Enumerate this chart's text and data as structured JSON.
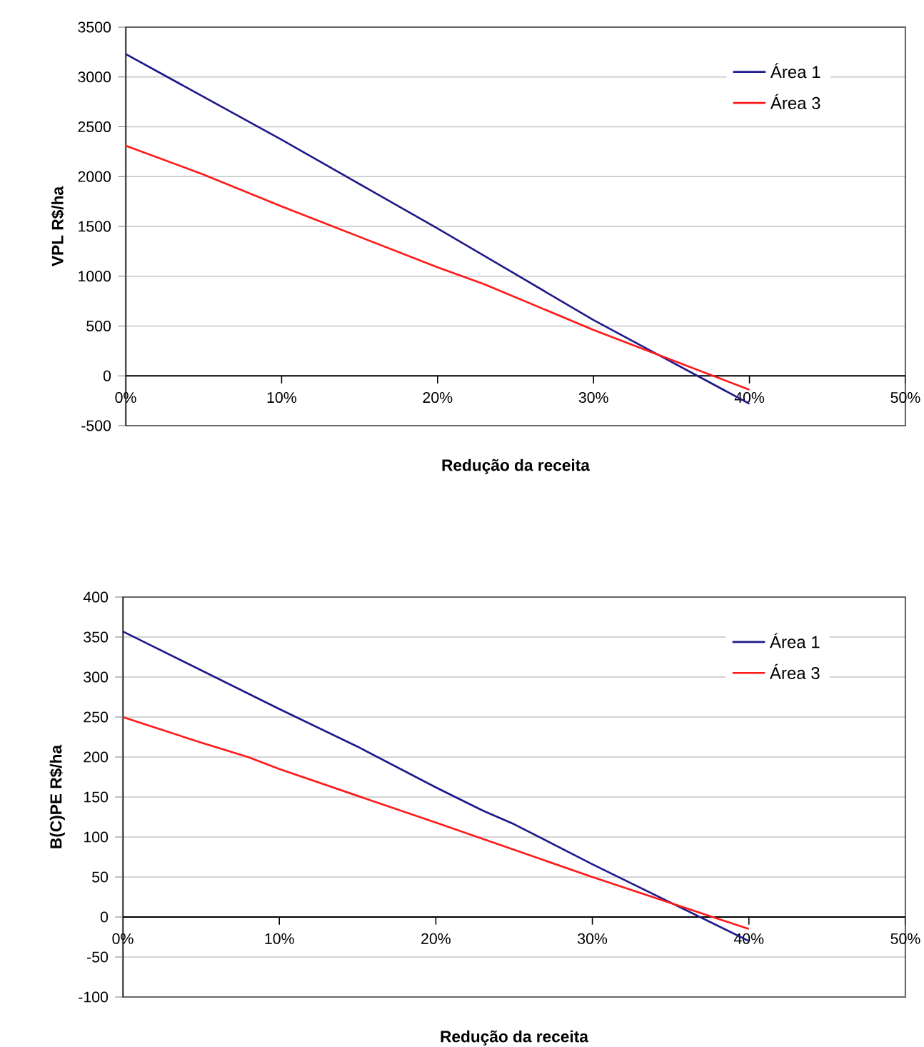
{
  "chart_data": [
    {
      "type": "line",
      "xlabel": "Redução da receita",
      "ylabel": "VPL R$/ha",
      "xlim": [
        0,
        50
      ],
      "ylim": [
        -500,
        3500
      ],
      "xticks": [
        {
          "value": 0,
          "label": "0%"
        },
        {
          "value": 10,
          "label": "10%"
        },
        {
          "value": 20,
          "label": "20%"
        },
        {
          "value": 30,
          "label": "30%"
        },
        {
          "value": 40,
          "label": "40%"
        },
        {
          "value": 50,
          "label": "50%"
        }
      ],
      "yticks": [
        -500,
        0,
        500,
        1000,
        1500,
        2000,
        2500,
        3000,
        3500
      ],
      "grid": "y",
      "legend": "top right",
      "marker": "none",
      "line_style": "solid",
      "series": [
        {
          "name": "Área 1",
          "color": "#1f1a8a",
          "x": [
            0,
            10,
            20,
            25,
            30,
            40
          ],
          "values": [
            3230,
            2370,
            1480,
            1020,
            560,
            -280
          ]
        },
        {
          "name": "Área 3",
          "color": "#ff1a1a",
          "x": [
            0,
            5,
            10,
            20,
            23,
            30,
            40
          ],
          "values": [
            2310,
            2020,
            1700,
            1090,
            920,
            460,
            -140
          ]
        }
      ]
    },
    {
      "type": "line",
      "xlabel": "Redução da receita",
      "ylabel": "B(C)PE R$/ha",
      "xlim": [
        0,
        50
      ],
      "ylim": [
        -100,
        400
      ],
      "xticks": [
        {
          "value": 0,
          "label": "0%"
        },
        {
          "value": 10,
          "label": "10%"
        },
        {
          "value": 20,
          "label": "20%"
        },
        {
          "value": 30,
          "label": "30%"
        },
        {
          "value": 40,
          "label": "40%"
        },
        {
          "value": 50,
          "label": "50%"
        }
      ],
      "yticks": [
        -100,
        -50,
        0,
        50,
        100,
        150,
        200,
        250,
        300,
        350,
        400
      ],
      "grid": "y",
      "legend": "top right",
      "marker": "none",
      "line_style": "solid",
      "series": [
        {
          "name": "Área 1",
          "color": "#1f1a8a",
          "x": [
            0,
            10,
            15,
            20,
            23,
            25,
            30,
            40
          ],
          "values": [
            357,
            260,
            213,
            162,
            133,
            116,
            66,
            -30
          ]
        },
        {
          "name": "Área 3",
          "color": "#ff1a1a",
          "x": [
            0,
            5,
            8,
            10,
            20,
            30,
            40
          ],
          "values": [
            250,
            218,
            200,
            185,
            118,
            50,
            -15
          ]
        }
      ]
    }
  ]
}
